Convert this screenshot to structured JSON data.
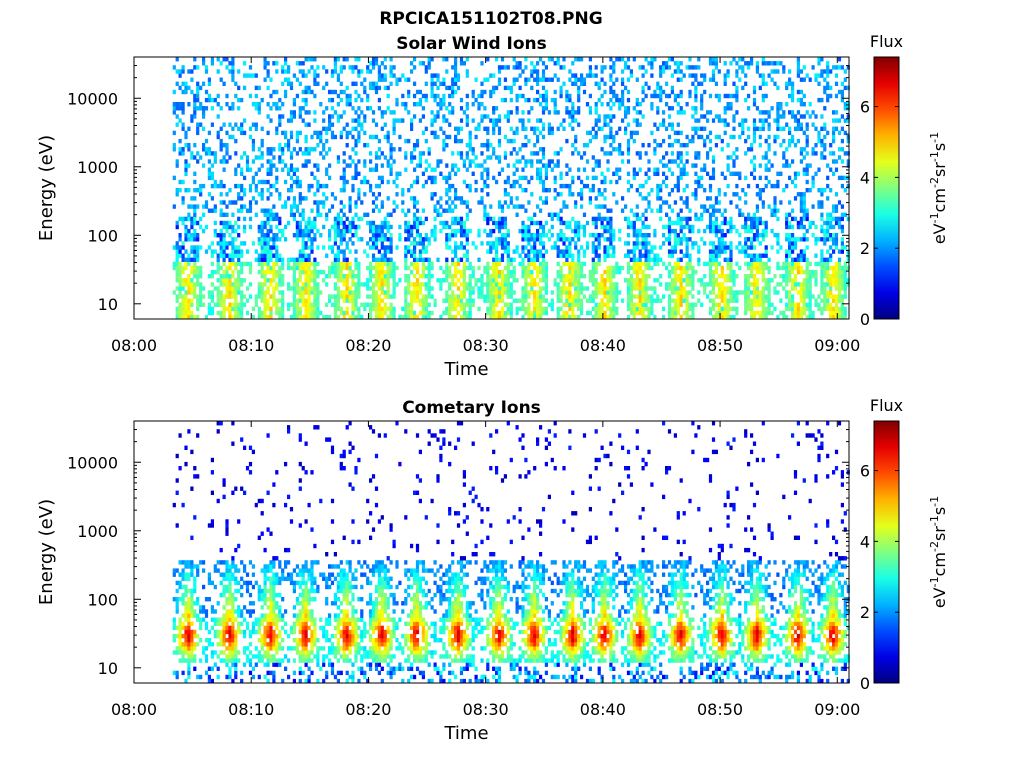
{
  "figure_title": "RPCICA151102T08.PNG",
  "colorbar_label_main": "eV",
  "colorbar_label_parts": [
    "-1",
    "cm",
    "-2",
    "sr",
    "-1",
    "s",
    "-1"
  ],
  "colors": {
    "colormap": [
      "#000080",
      "#0000ff",
      "#0080ff",
      "#00ffff",
      "#80ff80",
      "#ffff00",
      "#ff8000",
      "#ff0000",
      "#800000"
    ]
  },
  "chart_data": [
    {
      "type": "heatmap",
      "title": "Solar Wind Ions",
      "xlabel": "Time",
      "ylabel": "Energy (eV)",
      "x_ticks": [
        "08:00",
        "08:10",
        "08:20",
        "08:30",
        "08:40",
        "08:50",
        "09:00"
      ],
      "x_range_min": [
        0,
        61
      ],
      "y_scale": "log",
      "y_ticks": [
        "10",
        "100",
        "1000",
        "10000"
      ],
      "y_range_eV": [
        6,
        40000
      ],
      "colorbar_title": "Flux",
      "colorbar_ticks": [
        "0",
        "2",
        "4",
        "6"
      ],
      "colorbar_range": [
        0,
        7.4
      ],
      "data_start_min": 3.3,
      "data_end_min": 61,
      "pulse_times_min": [
        4.5,
        8,
        11.5,
        14.5,
        18,
        21,
        24,
        27.5,
        31,
        34,
        37,
        40,
        43,
        46.5,
        50,
        53,
        56.5,
        59.5
      ],
      "peak_energy_eV": 30,
      "peak_flux": 4.5,
      "background_flux_range": [
        1.5,
        2.5
      ],
      "grid": false
    },
    {
      "type": "heatmap",
      "title": "Cometary Ions",
      "xlabel": "Time",
      "ylabel": "Energy (eV)",
      "x_ticks": [
        "08:00",
        "08:10",
        "08:20",
        "08:30",
        "08:40",
        "08:50",
        "09:00"
      ],
      "x_range_min": [
        0,
        61
      ],
      "y_scale": "log",
      "y_ticks": [
        "10",
        "100",
        "1000",
        "10000"
      ],
      "y_range_eV": [
        6,
        40000
      ],
      "colorbar_title": "Flux",
      "colorbar_ticks": [
        "0",
        "2",
        "4",
        "6"
      ],
      "colorbar_range": [
        0,
        7.4
      ],
      "data_start_min": 3.3,
      "data_end_min": 61,
      "pulse_times_min": [
        4.5,
        8,
        11.5,
        14.5,
        18,
        21,
        24,
        27.5,
        31,
        34,
        37.3,
        40,
        43,
        46.5,
        50,
        53,
        56.5,
        59.5
      ],
      "peak_energy_eV": 30,
      "peak_flux": 6.5,
      "background_flux_range": [
        0.5,
        1.5
      ],
      "grid": false
    }
  ]
}
